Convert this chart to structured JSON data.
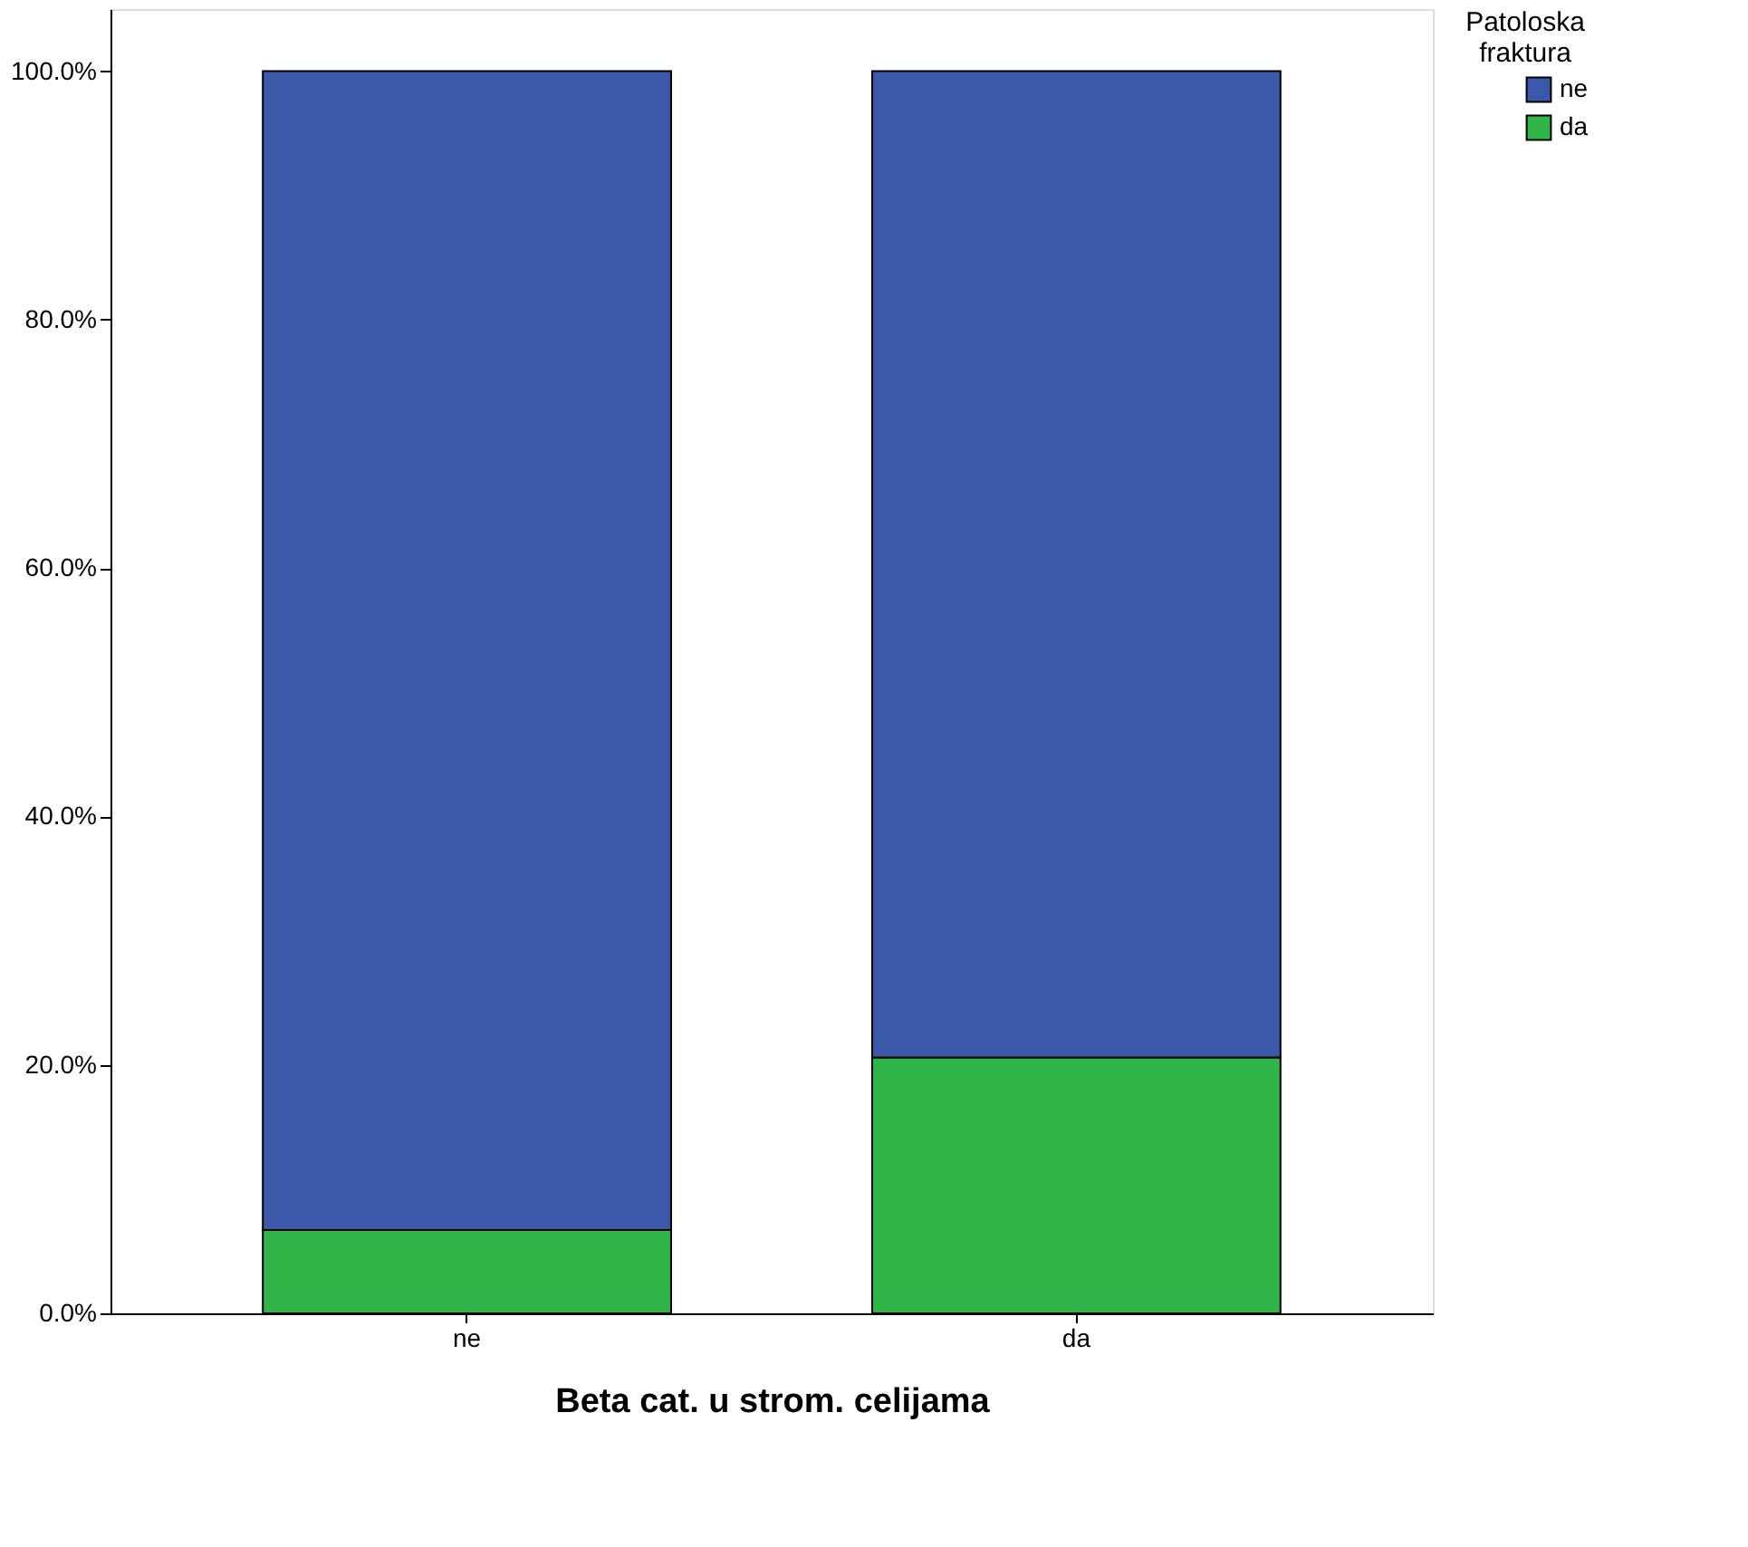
{
  "chart_data": {
    "type": "bar",
    "stacked": true,
    "xlabel": "Beta cat. u strom. celijama",
    "legend_title": "Patoloska fraktura",
    "legend": "top right",
    "grid": false,
    "categories": [
      "ne",
      "da"
    ],
    "series": [
      {
        "name": "da",
        "color": "#2fb548",
        "values": [
          6.7,
          20.6
        ]
      },
      {
        "name": "ne",
        "color": "#3c58a8",
        "values": [
          93.3,
          79.4
        ]
      }
    ],
    "ylim": [
      0,
      105
    ],
    "yticks": [
      {
        "value": 0,
        "label": "0.0%"
      },
      {
        "value": 20,
        "label": "20.0%"
      },
      {
        "value": 40,
        "label": "40.0%"
      },
      {
        "value": 60,
        "label": "60.0%"
      },
      {
        "value": 80,
        "label": "80.0%"
      },
      {
        "value": 100,
        "label": "100.0%"
      }
    ]
  }
}
